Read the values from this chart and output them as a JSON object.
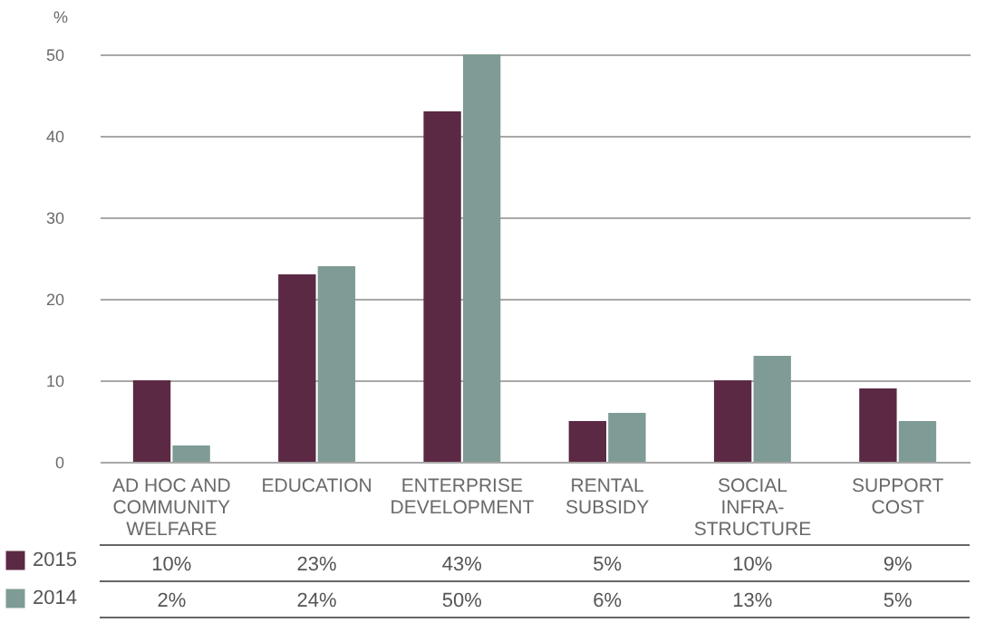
{
  "chart_data": {
    "type": "bar",
    "ylabel": "%",
    "categories": [
      "AD HOC AND COMMUNITY WELFARE",
      "EDUCATION",
      "ENTERPRISE DEVELOPMENT",
      "RENTAL SUBSIDY",
      "SOCIAL INFRA-STRUCTURE",
      "SUPPORT COST"
    ],
    "series": [
      {
        "name": "2015",
        "color": "#5c2944",
        "values": [
          10,
          23,
          43,
          5,
          10,
          9
        ],
        "value_labels": [
          "10%",
          "23%",
          "43%",
          "5%",
          "10%",
          "9%"
        ]
      },
      {
        "name": "2014",
        "color": "#7f9b95",
        "values": [
          2,
          24,
          50,
          6,
          13,
          5
        ],
        "value_labels": [
          "2%",
          "24%",
          "50%",
          "6%",
          "13%",
          "5%"
        ]
      }
    ],
    "ylim": [
      0,
      50
    ],
    "yticks": [
      0,
      10,
      20,
      30,
      40,
      50
    ],
    "grid": "y",
    "legend": "bottom left"
  }
}
